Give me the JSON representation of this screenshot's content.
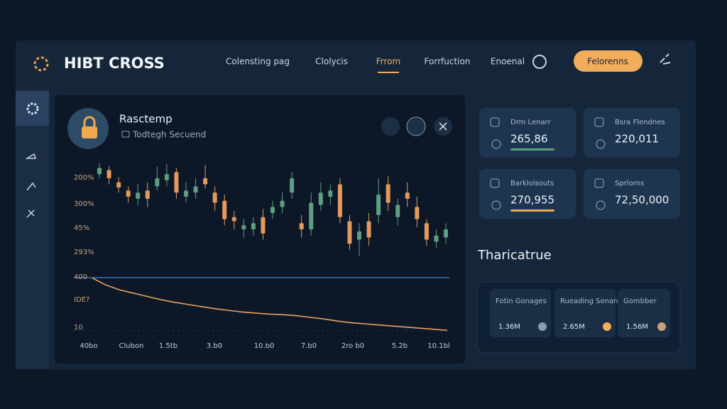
{
  "header": {
    "brand": "HIBT CROSS",
    "nav": [
      "Colensting pag",
      "Clolycis",
      "Frrom",
      "Forrfuction",
      "Enoenal"
    ],
    "button": "Felorenns"
  },
  "panel": {
    "title": "Rasctemp",
    "subtitle": "Todtegh Secuend"
  },
  "axis_labels": {
    "y": [
      "200%",
      "300%",
      "45%",
      "293%",
      "400",
      "IDE?",
      "10"
    ],
    "x": [
      "40bo",
      "Clubon",
      "1.5tb",
      "3.b0",
      "10.b0",
      "7.b0",
      "2ro b0",
      "5.2b",
      "10.1bl"
    ]
  },
  "chart_data": [
    {
      "type": "candlestick",
      "ylim": [
        0,
        100
      ],
      "up_color": "#5f9e80",
      "down_color": "#e39a5c",
      "candles": [
        {
          "open": 88,
          "close": 94,
          "high": 99,
          "low": 84
        },
        {
          "open": 92,
          "close": 84,
          "high": 96,
          "low": 78
        },
        {
          "open": 80,
          "close": 75,
          "high": 85,
          "low": 70
        },
        {
          "open": 72,
          "close": 66,
          "high": 76,
          "low": 60
        },
        {
          "open": 64,
          "close": 70,
          "high": 78,
          "low": 58
        },
        {
          "open": 72,
          "close": 64,
          "high": 80,
          "low": 56
        },
        {
          "open": 76,
          "close": 84,
          "high": 95,
          "low": 72
        },
        {
          "open": 82,
          "close": 88,
          "high": 98,
          "low": 76
        },
        {
          "open": 90,
          "close": 70,
          "high": 94,
          "low": 64
        },
        {
          "open": 66,
          "close": 72,
          "high": 80,
          "low": 60
        },
        {
          "open": 70,
          "close": 76,
          "high": 84,
          "low": 64
        },
        {
          "open": 84,
          "close": 78,
          "high": 97,
          "low": 74
        },
        {
          "open": 70,
          "close": 60,
          "high": 76,
          "low": 52
        },
        {
          "open": 62,
          "close": 44,
          "high": 68,
          "low": 38
        },
        {
          "open": 46,
          "close": 42,
          "high": 52,
          "low": 34
        },
        {
          "open": 34,
          "close": 38,
          "high": 44,
          "low": 26
        },
        {
          "open": 34,
          "close": 40,
          "high": 46,
          "low": 28
        },
        {
          "open": 46,
          "close": 30,
          "high": 54,
          "low": 24
        },
        {
          "open": 50,
          "close": 56,
          "high": 62,
          "low": 44
        },
        {
          "open": 56,
          "close": 62,
          "high": 70,
          "low": 50
        },
        {
          "open": 70,
          "close": 84,
          "high": 90,
          "low": 64
        },
        {
          "open": 40,
          "close": 34,
          "high": 48,
          "low": 26
        },
        {
          "open": 34,
          "close": 60,
          "high": 70,
          "low": 28
        },
        {
          "open": 58,
          "close": 70,
          "high": 80,
          "low": 52
        },
        {
          "open": 66,
          "close": 72,
          "high": 78,
          "low": 58
        },
        {
          "open": 78,
          "close": 46,
          "high": 84,
          "low": 40
        },
        {
          "open": 42,
          "close": 20,
          "high": 48,
          "low": 14
        },
        {
          "open": 24,
          "close": 32,
          "high": 40,
          "low": 8
        },
        {
          "open": 42,
          "close": 26,
          "high": 50,
          "low": 18
        },
        {
          "open": 48,
          "close": 68,
          "high": 84,
          "low": 40
        },
        {
          "open": 78,
          "close": 60,
          "high": 86,
          "low": 52
        },
        {
          "open": 46,
          "close": 58,
          "high": 64,
          "low": 38
        },
        {
          "open": 70,
          "close": 64,
          "high": 80,
          "low": 56
        },
        {
          "open": 56,
          "close": 44,
          "high": 66,
          "low": 36
        },
        {
          "open": 40,
          "close": 24,
          "high": 44,
          "low": 18
        },
        {
          "open": 22,
          "close": 28,
          "high": 34,
          "low": 16
        },
        {
          "open": 26,
          "close": 34,
          "high": 40,
          "low": 20
        }
      ]
    },
    {
      "type": "line",
      "ylim": [
        0,
        100
      ],
      "color": "#e6a25e",
      "values": [
        98,
        85,
        76,
        70,
        64,
        58,
        53,
        49,
        45,
        41,
        38,
        35,
        33,
        31,
        30,
        28,
        25,
        22,
        18,
        15,
        13,
        11,
        9,
        7,
        5,
        3,
        1
      ]
    }
  ],
  "stats": [
    {
      "label": "Drm Lenarr",
      "value": "265,86",
      "bar": "#5f9e80"
    },
    {
      "label": "Bsra Flendnes",
      "value": "220,011"
    },
    {
      "label": "Barklolsouts",
      "value": "270,955",
      "bar": "#f0a758"
    },
    {
      "label": "Sprlorns",
      "value": "72,50,000"
    }
  ],
  "section": {
    "title": "Tharicatrue",
    "columns": [
      {
        "label": "Fotin Gonages",
        "value": "1.36M"
      },
      {
        "label": "Rueading Senant",
        "value": "2.65M"
      },
      {
        "label": "Gombber",
        "value": "1.56M"
      }
    ]
  }
}
